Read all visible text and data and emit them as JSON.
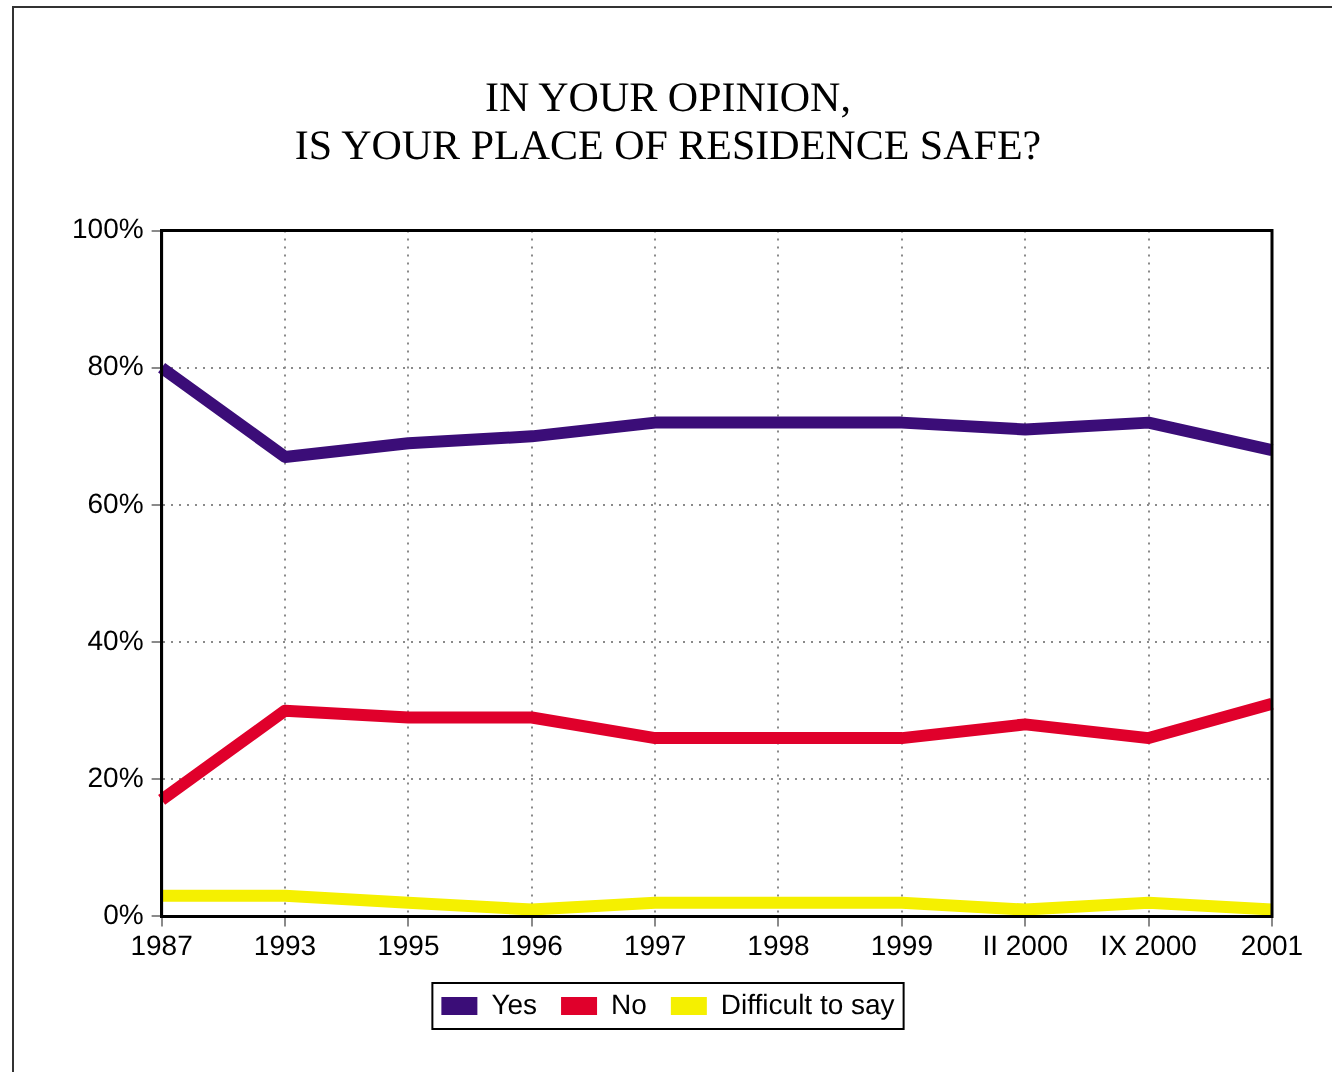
{
  "chart_data": {
    "type": "line",
    "title": [
      "IN YOUR OPINION,",
      "IS YOUR PLACE OF RESIDENCE SAFE?"
    ],
    "categories": [
      "1987",
      "1993",
      "1995",
      "1996",
      "1997",
      "1998",
      "1999",
      "II 2000",
      "IX 2000",
      "2001"
    ],
    "series": [
      {
        "name": "Yes",
        "color": "#3b0d78",
        "values": [
          80,
          67,
          69,
          70,
          72,
          72,
          72,
          71,
          72,
          68
        ]
      },
      {
        "name": "No",
        "color": "#e0002b",
        "values": [
          17,
          30,
          29,
          29,
          26,
          26,
          26,
          28,
          26,
          31
        ]
      },
      {
        "name": "Difficult to say",
        "color": "#f5f000",
        "values": [
          3,
          3,
          2,
          1,
          2,
          2,
          2,
          1,
          2,
          1
        ]
      }
    ],
    "ylim": [
      0,
      100
    ],
    "yticks": [
      {
        "value": 0,
        "label": "0%"
      },
      {
        "value": 20,
        "label": "20%"
      },
      {
        "value": 40,
        "label": "40%"
      },
      {
        "value": 60,
        "label": "60%"
      },
      {
        "value": 80,
        "label": "80%"
      },
      {
        "value": 100,
        "label": "100%"
      }
    ],
    "grid": true,
    "legend": "bottom",
    "marker": "none",
    "line_style": "solid"
  }
}
